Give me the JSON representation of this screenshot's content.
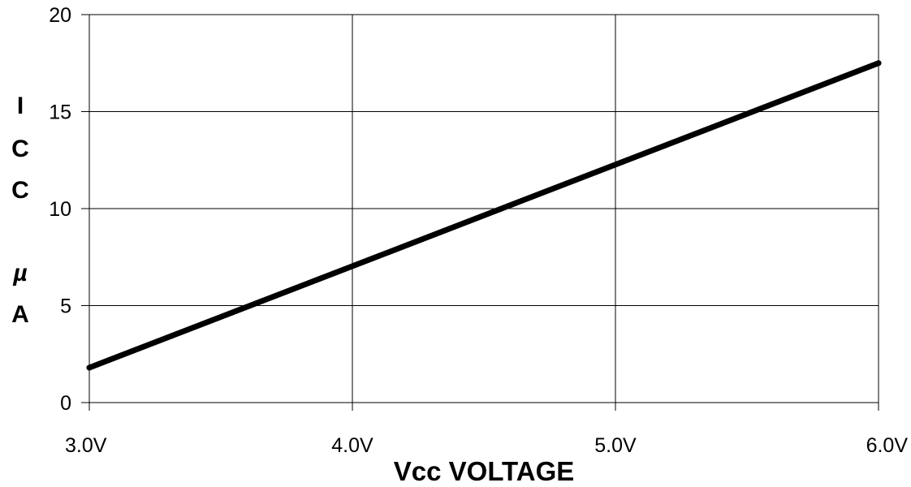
{
  "chart_data": {
    "type": "line",
    "title": "",
    "xlabel": "Vcc VOLTAGE",
    "ylabel_chars": [
      "I",
      "C",
      "C",
      "",
      "µ",
      "A"
    ],
    "x_ticks": [
      {
        "value": 3.0,
        "label": "3.0V"
      },
      {
        "value": 4.0,
        "label": "4.0V"
      },
      {
        "value": 5.0,
        "label": "5.0V"
      },
      {
        "value": 6.0,
        "label": "6.0V"
      }
    ],
    "y_ticks": [
      {
        "value": 0,
        "label": "0"
      },
      {
        "value": 5,
        "label": "5"
      },
      {
        "value": 10,
        "label": "10"
      },
      {
        "value": 15,
        "label": "15"
      },
      {
        "value": 20,
        "label": "20"
      }
    ],
    "xlim": [
      3.0,
      6.0
    ],
    "ylim": [
      0,
      20
    ],
    "grid": true,
    "series": [
      {
        "color": "#000000",
        "points": [
          {
            "x": 3.0,
            "y": 1.8
          },
          {
            "x": 6.0,
            "y": 17.5
          }
        ]
      }
    ]
  }
}
